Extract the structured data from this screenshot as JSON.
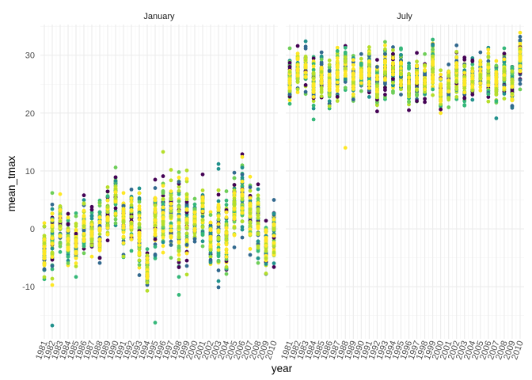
{
  "chart_data": {
    "type": "scatter",
    "xlabel": "year",
    "ylabel": "mean_tmax",
    "grid": true,
    "legend": "none",
    "xlim": [
      1980.5,
      2010.5
    ],
    "ylim": [
      -19,
      35.3
    ],
    "x_ticks": [
      1981,
      1982,
      1983,
      1984,
      1985,
      1986,
      1987,
      1988,
      1989,
      1990,
      1991,
      1992,
      1993,
      1994,
      1995,
      1996,
      1997,
      1998,
      1999,
      2000,
      2001,
      2002,
      2003,
      2004,
      2005,
      2006,
      2007,
      2008,
      2009,
      2010
    ],
    "x_tick_labels": [
      "1981",
      "1982",
      "1983",
      "1984",
      "1985",
      "1986",
      "1987",
      "1988",
      "1989",
      "1990",
      "1991",
      "1992",
      "1993",
      "1994",
      "1995",
      "1996",
      "1997",
      "1998",
      "1999",
      "2000",
      "2001",
      "2002",
      "2003",
      "2004",
      "2005",
      "2006",
      "2007",
      "2008",
      "2009",
      "2010"
    ],
    "y_ticks": [
      -10,
      0,
      10,
      20,
      30
    ],
    "y_tick_labels": [
      "-10",
      "0",
      "10",
      "20",
      "30"
    ],
    "colors": [
      "#440154",
      "#31688e",
      "#21918c",
      "#35b779",
      "#6ece58",
      "#b5de2b",
      "#fde725"
    ],
    "facets": [
      {
        "name": "January",
        "columns": [
          {
            "year": 1981,
            "min": -8.7,
            "max": 1.0,
            "out": []
          },
          {
            "year": 1982,
            "min": -9.7,
            "max": 6.2,
            "out": [
              -16.7
            ]
          },
          {
            "year": 1983,
            "min": -4.0,
            "max": 6.0,
            "out": []
          },
          {
            "year": 1984,
            "min": -6.3,
            "max": 2.6,
            "out": []
          },
          {
            "year": 1985,
            "min": -8.3,
            "max": 2.7,
            "out": []
          },
          {
            "year": 1986,
            "min": -4.2,
            "max": 5.8,
            "out": []
          },
          {
            "year": 1987,
            "min": -4.8,
            "max": 3.8,
            "out": []
          },
          {
            "year": 1988,
            "min": -5.9,
            "max": 4.9,
            "out": []
          },
          {
            "year": 1989,
            "min": -2.0,
            "max": 7.2,
            "out": []
          },
          {
            "year": 1990,
            "min": 0.6,
            "max": 10.6,
            "out": []
          },
          {
            "year": 1991,
            "min": -4.9,
            "max": 6.2,
            "out": []
          },
          {
            "year": 1992,
            "min": -3.8,
            "max": 6.8,
            "out": []
          },
          {
            "year": 1993,
            "min": -8.0,
            "max": 7.0,
            "out": []
          },
          {
            "year": 1994,
            "min": -10.7,
            "max": -3.5,
            "out": []
          },
          {
            "year": 1995,
            "min": -5.1,
            "max": 8.5,
            "out": [
              -16.2
            ]
          },
          {
            "year": 1996,
            "min": -4.1,
            "max": 9.1,
            "out": [
              13.3
            ]
          },
          {
            "year": 1997,
            "min": -5.0,
            "max": 10.2,
            "out": []
          },
          {
            "year": 1998,
            "min": -8.3,
            "max": 9.8,
            "out": [
              -11.4
            ]
          },
          {
            "year": 1999,
            "min": -7.9,
            "max": 10.1,
            "out": []
          },
          {
            "year": 2000,
            "min": -2.2,
            "max": 5.2,
            "out": []
          },
          {
            "year": 2001,
            "min": -3.0,
            "max": 9.4,
            "out": []
          },
          {
            "year": 2002,
            "min": -6.1,
            "max": 2.9,
            "out": []
          },
          {
            "year": 2003,
            "min": -10.1,
            "max": 11.2,
            "out": []
          },
          {
            "year": 2004,
            "min": -7.8,
            "max": 6.5,
            "out": []
          },
          {
            "year": 2005,
            "min": -3.2,
            "max": 9.7,
            "out": []
          },
          {
            "year": 2006,
            "min": -1.5,
            "max": 12.9,
            "out": []
          },
          {
            "year": 2007,
            "min": -4.5,
            "max": 9.0,
            "out": []
          },
          {
            "year": 2008,
            "min": -5.9,
            "max": 7.7,
            "out": []
          },
          {
            "year": 2009,
            "min": -7.8,
            "max": 1.4,
            "out": []
          },
          {
            "year": 2010,
            "min": -6.6,
            "max": 5.0,
            "out": []
          }
        ]
      },
      {
        "name": "July",
        "columns": [
          {
            "year": 1981,
            "min": 21.6,
            "max": 31.2,
            "out": []
          },
          {
            "year": 1982,
            "min": 23.6,
            "max": 31.6,
            "out": []
          },
          {
            "year": 1983,
            "min": 23.3,
            "max": 32.4,
            "out": []
          },
          {
            "year": 1984,
            "min": 20.8,
            "max": 29.7,
            "out": [
              18.9
            ]
          },
          {
            "year": 1985,
            "min": 22.7,
            "max": 30.5,
            "out": []
          },
          {
            "year": 1986,
            "min": 20.8,
            "max": 29.1,
            "out": []
          },
          {
            "year": 1987,
            "min": 22.1,
            "max": 31.3,
            "out": []
          },
          {
            "year": 1988,
            "min": 24.0,
            "max": 31.6,
            "out": [
              14.0
            ]
          },
          {
            "year": 1989,
            "min": 22.1,
            "max": 29.9,
            "out": []
          },
          {
            "year": 1990,
            "min": 23.8,
            "max": 30.2,
            "out": []
          },
          {
            "year": 1991,
            "min": 22.8,
            "max": 31.4,
            "out": []
          },
          {
            "year": 1992,
            "min": 20.3,
            "max": 29.2,
            "out": []
          },
          {
            "year": 1993,
            "min": 22.4,
            "max": 32.3,
            "out": []
          },
          {
            "year": 1994,
            "min": 23.5,
            "max": 31.4,
            "out": []
          },
          {
            "year": 1995,
            "min": 23.2,
            "max": 31.2,
            "out": []
          },
          {
            "year": 1996,
            "min": 20.5,
            "max": 28.6,
            "out": []
          },
          {
            "year": 1997,
            "min": 22.0,
            "max": 30.4,
            "out": []
          },
          {
            "year": 1998,
            "min": 21.9,
            "max": 30.2,
            "out": []
          },
          {
            "year": 1999,
            "min": 23.1,
            "max": 32.7,
            "out": []
          },
          {
            "year": 2000,
            "min": 20.0,
            "max": 27.4,
            "out": []
          },
          {
            "year": 2001,
            "min": 21.0,
            "max": 28.4,
            "out": []
          },
          {
            "year": 2002,
            "min": 22.4,
            "max": 31.7,
            "out": []
          },
          {
            "year": 2003,
            "min": 21.3,
            "max": 29.6,
            "out": []
          },
          {
            "year": 2004,
            "min": 22.3,
            "max": 29.5,
            "out": []
          },
          {
            "year": 2005,
            "min": 23.9,
            "max": 30.5,
            "out": []
          },
          {
            "year": 2006,
            "min": 22.0,
            "max": 31.3,
            "out": []
          },
          {
            "year": 2007,
            "min": 21.8,
            "max": 29.0,
            "out": [
              19.1
            ]
          },
          {
            "year": 2008,
            "min": 22.5,
            "max": 31.2,
            "out": []
          },
          {
            "year": 2009,
            "min": 20.9,
            "max": 28.0,
            "out": []
          },
          {
            "year": 2010,
            "min": 24.1,
            "max": 33.9,
            "out": []
          }
        ]
      }
    ]
  }
}
